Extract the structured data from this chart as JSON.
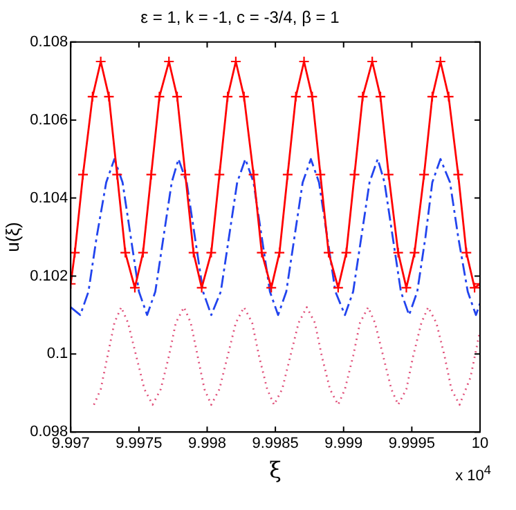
{
  "chart_data": {
    "type": "line",
    "title": "ε = 1, k = -1, c = -3/4, β = 1",
    "xlabel": "ξ",
    "ylabel": "u(ξ)",
    "annotations": [
      "x 10$^{4}$"
    ],
    "xlim": [
      9.997,
      10
    ],
    "xticks": [
      9.997,
      9.9975,
      9.998,
      9.9985,
      9.999,
      9.9995,
      10
    ],
    "ylim": [
      0.098,
      0.108
    ],
    "yticks": [
      0.098,
      0.1,
      0.102,
      0.104,
      0.106,
      0.108
    ],
    "grid": false,
    "legend": false,
    "series": [
      {
        "color": "#ff0000",
        "marker": "cross",
        "line_style": "solid",
        "x": [
          9.997,
          9.99703,
          9.99709,
          9.99716,
          9.99722,
          9.99728,
          9.99734,
          9.9974,
          9.99747,
          9.99753,
          9.99759,
          9.99765,
          9.99772,
          9.99778,
          9.99784,
          9.9979,
          9.99796,
          9.99803,
          9.99809,
          9.99815,
          9.99821,
          9.99827,
          9.99834,
          9.9984,
          9.99847,
          9.99853,
          9.99859,
          9.99865,
          9.99871,
          9.99877,
          9.99883,
          9.99889,
          9.99896,
          9.99902,
          9.99908,
          9.99914,
          9.99921,
          9.99927,
          9.99933,
          9.9994,
          9.99946,
          9.99952,
          9.99959,
          9.99965,
          9.99971,
          9.99977,
          9.99984,
          9.9999,
          9.99996,
          10
        ],
        "values": [
          0.1018,
          0.1026,
          0.1046,
          0.1066,
          0.1075,
          0.1066,
          0.1046,
          0.1026,
          0.1017,
          0.1026,
          0.1046,
          0.1066,
          0.1075,
          0.1066,
          0.1046,
          0.1026,
          0.1017,
          0.1026,
          0.1046,
          0.1066,
          0.1075,
          0.1066,
          0.1046,
          0.1026,
          0.1017,
          0.1026,
          0.1046,
          0.1066,
          0.1075,
          0.1066,
          0.1046,
          0.1026,
          0.1017,
          0.1026,
          0.1046,
          0.1066,
          0.1075,
          0.1066,
          0.1046,
          0.1026,
          0.1017,
          0.1026,
          0.1046,
          0.1066,
          0.1075,
          0.1066,
          0.1046,
          0.1026,
          0.1017,
          0.1018
        ]
      },
      {
        "color": "#2244ee",
        "marker": "none",
        "line_style": "dashed",
        "x": [
          9.997,
          9.99707,
          9.99713,
          9.99719,
          9.99726,
          9.99732,
          9.99738,
          9.99744,
          9.9975,
          9.99756,
          9.99762,
          9.99768,
          9.99774,
          9.99779,
          9.99785,
          9.99791,
          9.99797,
          9.99803,
          9.9981,
          9.99816,
          9.99822,
          9.99828,
          9.99834,
          9.9984,
          9.99846,
          9.99852,
          9.99858,
          9.99864,
          9.9987,
          9.99876,
          9.99882,
          9.99888,
          9.99894,
          9.99901,
          9.99907,
          9.99913,
          9.99919,
          9.99925,
          9.9993,
          9.99936,
          9.99942,
          9.99948,
          9.99954,
          9.9996,
          9.99965,
          9.99971,
          9.99978,
          9.99984,
          9.99991,
          9.99997,
          10
        ],
        "values": [
          0.1012,
          0.101,
          0.1016,
          0.103,
          0.1044,
          0.105,
          0.1044,
          0.103,
          0.1016,
          0.101,
          0.1016,
          0.103,
          0.1044,
          0.105,
          0.1044,
          0.103,
          0.1016,
          0.101,
          0.1016,
          0.103,
          0.1044,
          0.105,
          0.1044,
          0.103,
          0.1016,
          0.101,
          0.1016,
          0.103,
          0.1044,
          0.105,
          0.1044,
          0.103,
          0.1016,
          0.101,
          0.1016,
          0.103,
          0.1044,
          0.105,
          0.1044,
          0.103,
          0.1016,
          0.101,
          0.1016,
          0.103,
          0.1044,
          0.105,
          0.1044,
          0.103,
          0.1016,
          0.101,
          0.1013
        ]
      },
      {
        "color": "#e0507a",
        "marker": "none",
        "line_style": "dotted",
        "x": [
          9.99717,
          9.99722,
          9.99727,
          9.99732,
          9.99737,
          9.99742,
          9.99748,
          9.99754,
          9.9976,
          9.99766,
          9.99772,
          9.99777,
          9.99783,
          9.99788,
          9.99793,
          9.99798,
          9.99803,
          9.99809,
          9.99815,
          9.99821,
          9.99827,
          9.99833,
          9.99838,
          9.99844,
          9.99849,
          9.99855,
          9.99861,
          9.99867,
          9.99873,
          9.99879,
          9.99884,
          9.9989,
          9.99896,
          9.99901,
          9.99907,
          9.99912,
          9.99918,
          9.99923,
          9.99929,
          9.99935,
          9.9994,
          9.99946,
          9.99951,
          9.99957,
          9.99962,
          9.99968,
          9.99974,
          9.99979,
          9.99985,
          9.99993,
          10
        ],
        "values": [
          0.0987,
          0.0991,
          0.09995,
          0.1008,
          0.1012,
          0.1008,
          0.09995,
          0.0991,
          0.0987,
          0.0991,
          0.09995,
          0.1008,
          0.1012,
          0.1008,
          0.09995,
          0.0991,
          0.0987,
          0.0991,
          0.09995,
          0.1008,
          0.1012,
          0.1008,
          0.09995,
          0.0991,
          0.0987,
          0.0991,
          0.09995,
          0.1008,
          0.1012,
          0.1008,
          0.09995,
          0.0991,
          0.0987,
          0.0991,
          0.09995,
          0.1008,
          0.1012,
          0.1008,
          0.09995,
          0.0991,
          0.0987,
          0.0991,
          0.09995,
          0.1008,
          0.1012,
          0.1008,
          0.09995,
          0.0991,
          0.0987,
          0.0994,
          0.1006
        ]
      }
    ]
  }
}
